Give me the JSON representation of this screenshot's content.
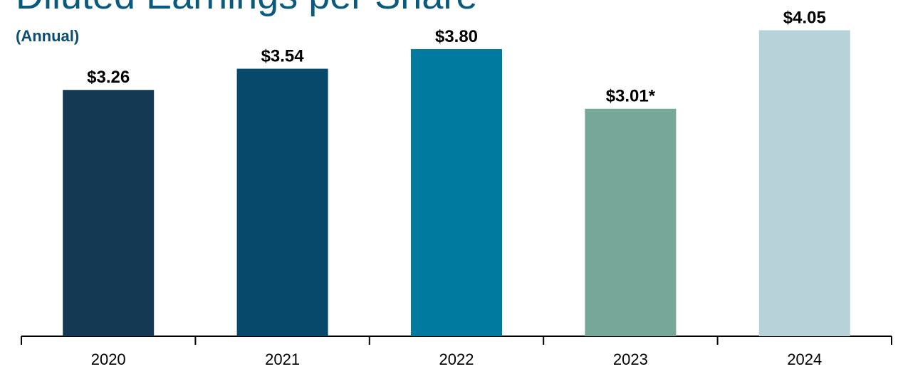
{
  "chart_data": {
    "type": "bar",
    "title": "Diluted Earnings per Share",
    "subtitle": "(Annual)",
    "categories": [
      "2020",
      "2021",
      "2022",
      "2023",
      "2024"
    ],
    "values": [
      3.26,
      3.54,
      3.8,
      3.01,
      4.05
    ],
    "value_labels": [
      "$3.26",
      "$3.54",
      "$3.80",
      "$3.01*",
      "$4.05"
    ],
    "colors": [
      "#133a52",
      "#06496b",
      "#007a9e",
      "#76a799",
      "#b7d3d9"
    ],
    "ylim": [
      0,
      4.45
    ],
    "grid": false
  }
}
